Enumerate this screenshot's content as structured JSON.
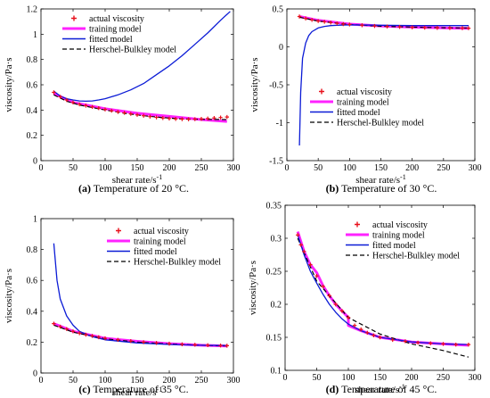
{
  "figure": {
    "panels": [
      {
        "id": "a",
        "caption_letter": "(a)",
        "caption_text": "Temperature of 20 °C.",
        "ylabel": "viscosity/Pa·s",
        "xlabel": "shear rate/s",
        "xlabel_sup": "-1",
        "xlim": [
          0,
          300
        ],
        "ylim": [
          0,
          1.2
        ],
        "xticks": [
          0,
          50,
          100,
          150,
          200,
          250,
          300
        ],
        "yticks": [
          0,
          0.2,
          0.4,
          0.6,
          0.8,
          1,
          1.2
        ],
        "xtick_labels": [
          "0",
          "50",
          "100",
          "150",
          "200",
          "250",
          "300"
        ],
        "ytick_labels": [
          "0",
          "0.2",
          "0.4",
          "0.6",
          "0.8",
          "1",
          "1.2"
        ],
        "legend_position": "top-left"
      },
      {
        "id": "b",
        "caption_letter": "(b)",
        "caption_text": "Temperature of 30 °C.",
        "ylabel": "viscosity/Pa·s",
        "xlabel": "shear rate/s",
        "xlabel_sup": "-1",
        "xlim": [
          0,
          300
        ],
        "ylim": [
          -1.5,
          0.5
        ],
        "xticks": [
          0,
          50,
          100,
          150,
          200,
          250,
          300
        ],
        "yticks": [
          -1.5,
          -1,
          -0.5,
          0,
          0.5
        ],
        "xtick_labels": [
          "0",
          "50",
          "100",
          "150",
          "200",
          "250",
          "300"
        ],
        "ytick_labels": [
          "-1.5",
          "-1",
          "-0.5",
          "0",
          "0.5"
        ],
        "legend_position": "center-right"
      },
      {
        "id": "c",
        "caption_letter": "(c)",
        "caption_text": "Temperature of 35 °C.",
        "ylabel": "viscosity/Pa·s",
        "xlabel": "shear rate/s",
        "xlabel_sup": "-1",
        "xlim": [
          0,
          300
        ],
        "ylim": [
          0,
          1
        ],
        "xticks": [
          0,
          50,
          100,
          150,
          200,
          250,
          300
        ],
        "yticks": [
          0,
          0.2,
          0.4,
          0.6,
          0.8,
          1
        ],
        "xtick_labels": [
          "0",
          "50",
          "100",
          "150",
          "200",
          "250",
          "300"
        ],
        "ytick_labels": [
          "0",
          "0.2",
          "0.4",
          "0.6",
          "0.8",
          "1"
        ],
        "legend_position": "top-right"
      },
      {
        "id": "d",
        "caption_letter": "(d)",
        "caption_text": "Temperature of 45 °C.",
        "ylabel": "viscosity/Pa·s",
        "xlabel": "shear rate/s",
        "xlabel_sup": "-1",
        "xlim": [
          0,
          300
        ],
        "ylim": [
          0.1,
          0.35
        ],
        "xticks": [
          0,
          50,
          100,
          150,
          200,
          250,
          300
        ],
        "yticks": [
          0.1,
          0.15,
          0.2,
          0.25,
          0.3,
          0.35
        ],
        "xtick_labels": [
          "0",
          "50",
          "100",
          "150",
          "200",
          "250",
          "300"
        ],
        "ytick_labels": [
          "0.1",
          "0.15",
          "0.2",
          "0.25",
          "0.3",
          "0.35"
        ],
        "legend_position": "top-right"
      }
    ]
  },
  "legend": {
    "items": [
      {
        "label": "actual viscosity",
        "style": "marker",
        "color": "#e8101b"
      },
      {
        "label": "training model",
        "style": "thick-line",
        "color": "#ff22ff"
      },
      {
        "label": "fitted model",
        "style": "line",
        "color": "#0b1bd6"
      },
      {
        "label": "Herschel-Bulkley model",
        "style": "dashed",
        "color": "#000000"
      }
    ]
  },
  "chart_data": [
    {
      "type": "line",
      "panel": "a",
      "xlim": [
        0,
        300
      ],
      "ylim": [
        0,
        1.2
      ],
      "series": [
        {
          "name": "actual viscosity",
          "x": [
            20,
            30,
            40,
            50,
            60,
            70,
            80,
            90,
            100,
            110,
            120,
            130,
            140,
            150,
            160,
            170,
            180,
            190,
            200,
            210,
            220,
            230,
            240,
            250,
            260,
            270,
            280,
            290
          ],
          "y": [
            0.54,
            0.505,
            0.48,
            0.46,
            0.445,
            0.435,
            0.425,
            0.415,
            0.405,
            0.395,
            0.385,
            0.378,
            0.37,
            0.362,
            0.355,
            0.348,
            0.342,
            0.337,
            0.333,
            0.33,
            0.328,
            0.327,
            0.328,
            0.33,
            0.333,
            0.337,
            0.341,
            0.345
          ]
        },
        {
          "name": "training model",
          "x": [
            20,
            50,
            100,
            150,
            200,
            250,
            290
          ],
          "y": [
            0.53,
            0.46,
            0.41,
            0.375,
            0.35,
            0.325,
            0.31
          ]
        },
        {
          "name": "fitted model",
          "x": [
            20,
            30,
            40,
            50,
            60,
            70,
            80,
            90,
            100,
            120,
            140,
            160,
            180,
            200,
            220,
            240,
            260,
            280,
            295
          ],
          "y": [
            0.55,
            0.51,
            0.49,
            0.48,
            0.472,
            0.47,
            0.472,
            0.48,
            0.49,
            0.52,
            0.56,
            0.61,
            0.68,
            0.75,
            0.83,
            0.92,
            1.01,
            1.11,
            1.18
          ]
        },
        {
          "name": "Herschel-Bulkley model",
          "x": [
            20,
            40,
            60,
            80,
            100,
            130,
            160,
            190,
            220,
            250,
            290
          ],
          "y": [
            0.52,
            0.47,
            0.44,
            0.42,
            0.4,
            0.375,
            0.355,
            0.34,
            0.33,
            0.327,
            0.325
          ]
        }
      ]
    },
    {
      "type": "line",
      "panel": "b",
      "xlim": [
        0,
        300
      ],
      "ylim": [
        -1.5,
        0.5
      ],
      "series": [
        {
          "name": "actual viscosity",
          "x": [
            20,
            30,
            40,
            50,
            60,
            70,
            80,
            90,
            100,
            120,
            140,
            160,
            180,
            200,
            220,
            240,
            260,
            280,
            290
          ],
          "y": [
            0.4,
            0.375,
            0.355,
            0.34,
            0.33,
            0.32,
            0.31,
            0.3,
            0.295,
            0.285,
            0.275,
            0.268,
            0.262,
            0.257,
            0.253,
            0.25,
            0.248,
            0.247,
            0.246
          ]
        },
        {
          "name": "training model",
          "x": [
            20,
            50,
            100,
            150,
            200,
            250,
            290
          ],
          "y": [
            0.4,
            0.35,
            0.3,
            0.275,
            0.26,
            0.25,
            0.245
          ]
        },
        {
          "name": "fitted model",
          "x": [
            20,
            22,
            25,
            30,
            35,
            40,
            50,
            60,
            70,
            80,
            100,
            150,
            200,
            250,
            290
          ],
          "y": [
            -1.3,
            -0.6,
            -0.15,
            0.05,
            0.15,
            0.2,
            0.25,
            0.27,
            0.28,
            0.285,
            0.29,
            0.285,
            0.28,
            0.28,
            0.28
          ]
        },
        {
          "name": "Herschel-Bulkley model",
          "x": [
            20,
            50,
            100,
            150,
            200,
            250,
            290
          ],
          "y": [
            0.39,
            0.34,
            0.295,
            0.272,
            0.26,
            0.252,
            0.248
          ]
        }
      ]
    },
    {
      "type": "line",
      "panel": "c",
      "xlim": [
        0,
        300
      ],
      "ylim": [
        0,
        1
      ],
      "series": [
        {
          "name": "actual viscosity",
          "x": [
            20,
            30,
            40,
            50,
            60,
            70,
            80,
            90,
            100,
            120,
            140,
            160,
            180,
            200,
            220,
            240,
            260,
            280,
            290
          ],
          "y": [
            0.32,
            0.3,
            0.285,
            0.27,
            0.258,
            0.248,
            0.24,
            0.232,
            0.225,
            0.215,
            0.207,
            0.2,
            0.195,
            0.19,
            0.186,
            0.183,
            0.18,
            0.178,
            0.177
          ]
        },
        {
          "name": "training model",
          "x": [
            20,
            50,
            100,
            150,
            200,
            250,
            290
          ],
          "y": [
            0.32,
            0.27,
            0.225,
            0.205,
            0.19,
            0.18,
            0.175
          ]
        },
        {
          "name": "fitted model",
          "x": [
            20,
            25,
            30,
            40,
            50,
            60,
            80,
            100,
            150,
            200,
            250,
            290
          ],
          "y": [
            0.84,
            0.6,
            0.48,
            0.37,
            0.31,
            0.27,
            0.235,
            0.215,
            0.195,
            0.185,
            0.18,
            0.178
          ]
        },
        {
          "name": "Herschel-Bulkley model",
          "x": [
            20,
            50,
            100,
            150,
            200,
            250,
            290
          ],
          "y": [
            0.31,
            0.265,
            0.222,
            0.2,
            0.188,
            0.18,
            0.175
          ]
        }
      ]
    },
    {
      "type": "line",
      "panel": "d",
      "xlim": [
        0,
        300
      ],
      "ylim": [
        0.1,
        0.35
      ],
      "series": [
        {
          "name": "actual viscosity",
          "x": [
            20,
            25,
            30,
            40,
            50,
            60,
            70,
            80,
            90,
            100,
            110,
            120,
            130,
            140,
            150,
            170,
            190,
            210,
            230,
            250,
            270,
            290
          ],
          "y": [
            0.305,
            0.29,
            0.28,
            0.26,
            0.243,
            0.227,
            0.213,
            0.2,
            0.19,
            0.18,
            0.168,
            0.162,
            0.157,
            0.153,
            0.15,
            0.146,
            0.144,
            0.142,
            0.141,
            0.14,
            0.139,
            0.139
          ]
        },
        {
          "name": "training model",
          "x": [
            20,
            30,
            40,
            50,
            60,
            70,
            80,
            90,
            100,
            100,
            120,
            150,
            200,
            250,
            290
          ],
          "y": [
            0.31,
            0.28,
            0.26,
            0.248,
            0.228,
            0.213,
            0.2,
            0.19,
            0.18,
            0.168,
            0.16,
            0.15,
            0.143,
            0.14,
            0.138
          ]
        },
        {
          "name": "fitted model",
          "x": [
            20,
            30,
            40,
            50,
            60,
            70,
            80,
            90,
            100,
            120,
            150,
            200,
            250,
            290
          ],
          "y": [
            0.305,
            0.275,
            0.25,
            0.232,
            0.215,
            0.2,
            0.188,
            0.178,
            0.17,
            0.16,
            0.15,
            0.143,
            0.14,
            0.139
          ]
        },
        {
          "name": "Herschel-Bulkley model",
          "x": [
            20,
            50,
            100,
            150,
            200,
            250,
            290
          ],
          "y": [
            0.3,
            0.235,
            0.18,
            0.155,
            0.14,
            0.13,
            0.12
          ]
        }
      ]
    }
  ]
}
